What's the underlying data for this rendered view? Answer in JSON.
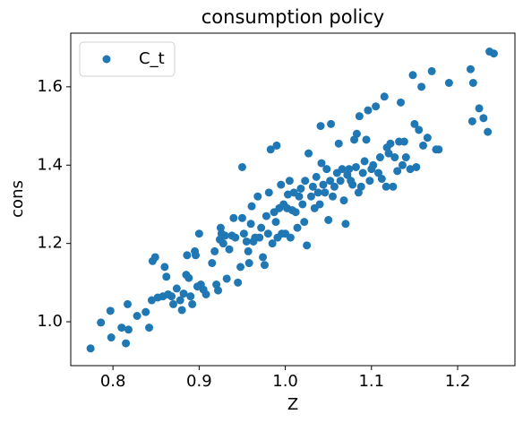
{
  "chart_data": {
    "type": "scatter",
    "title": "consumption policy",
    "x_label": "Z",
    "y_label": "cons",
    "series": [
      {
        "name": "C_t",
        "color": "#1f77b4",
        "x": [
          0.774,
          0.786,
          0.797,
          0.798,
          0.81,
          0.815,
          0.817,
          0.818,
          0.828,
          0.838,
          0.842,
          0.845,
          0.846,
          0.849,
          0.852,
          0.858,
          0.86,
          0.862,
          0.864,
          0.868,
          0.87,
          0.874,
          0.878,
          0.88,
          0.882,
          0.885,
          0.886,
          0.888,
          0.89,
          0.892,
          0.895,
          0.896,
          0.898,
          0.9,
          0.902,
          0.905,
          0.908,
          0.915,
          0.918,
          0.92,
          0.922,
          0.924,
          0.925,
          0.926,
          0.928,
          0.93,
          0.932,
          0.935,
          0.938,
          0.94,
          0.942,
          0.945,
          0.948,
          0.95,
          0.95,
          0.952,
          0.955,
          0.957,
          0.958,
          0.96,
          0.961,
          0.963,
          0.965,
          0.968,
          0.97,
          0.972,
          0.974,
          0.976,
          0.978,
          0.98,
          0.981,
          0.983,
          0.985,
          0.987,
          0.989,
          0.99,
          0.991,
          0.993,
          0.995,
          0.996,
          0.998,
          1.0,
          1.002,
          1.003,
          1.005,
          1.006,
          1.008,
          1.01,
          1.012,
          1.014,
          1.016,
          1.018,
          1.02,
          1.022,
          1.023,
          1.025,
          1.027,
          1.03,
          1.032,
          1.034,
          1.036,
          1.038,
          1.04,
          1.041,
          1.042,
          1.044,
          1.046,
          1.048,
          1.05,
          1.052,
          1.053,
          1.055,
          1.057,
          1.06,
          1.062,
          1.064,
          1.066,
          1.068,
          1.07,
          1.072,
          1.074,
          1.076,
          1.078,
          1.08,
          1.082,
          1.083,
          1.085,
          1.086,
          1.088,
          1.09,
          1.092,
          1.094,
          1.096,
          1.098,
          1.1,
          1.102,
          1.105,
          1.108,
          1.11,
          1.112,
          1.115,
          1.117,
          1.118,
          1.12,
          1.122,
          1.125,
          1.127,
          1.13,
          1.132,
          1.134,
          1.136,
          1.138,
          1.14,
          1.145,
          1.148,
          1.15,
          1.152,
          1.155,
          1.158,
          1.16,
          1.165,
          1.17,
          1.175,
          1.178,
          1.19,
          1.215,
          1.217,
          1.218,
          1.225,
          1.23,
          1.235,
          1.237,
          1.242
        ],
        "values": [
          0.932,
          0.998,
          1.028,
          0.96,
          0.985,
          0.945,
          1.045,
          0.98,
          1.015,
          1.025,
          0.985,
          1.055,
          1.155,
          1.165,
          1.062,
          1.065,
          1.14,
          1.115,
          1.07,
          1.065,
          1.045,
          1.085,
          1.055,
          1.03,
          1.072,
          1.12,
          1.17,
          1.112,
          1.065,
          1.045,
          1.18,
          1.17,
          1.09,
          1.225,
          1.095,
          1.082,
          1.07,
          1.15,
          1.18,
          1.095,
          1.08,
          1.21,
          1.24,
          1.225,
          1.2,
          1.22,
          1.11,
          1.185,
          1.22,
          1.265,
          1.215,
          1.1,
          1.14,
          1.395,
          1.265,
          1.225,
          1.205,
          1.18,
          1.15,
          1.25,
          1.295,
          1.205,
          1.215,
          1.32,
          1.215,
          1.24,
          1.165,
          1.145,
          1.27,
          1.225,
          1.33,
          1.44,
          1.2,
          1.28,
          1.255,
          1.45,
          1.215,
          1.29,
          1.35,
          1.225,
          1.3,
          1.225,
          1.29,
          1.325,
          1.36,
          1.215,
          1.285,
          1.33,
          1.28,
          1.24,
          1.32,
          1.34,
          1.3,
          1.255,
          1.36,
          1.195,
          1.43,
          1.32,
          1.345,
          1.29,
          1.37,
          1.33,
          1.3,
          1.5,
          1.405,
          1.35,
          1.33,
          1.39,
          1.26,
          1.36,
          1.505,
          1.32,
          1.345,
          1.38,
          1.455,
          1.36,
          1.39,
          1.31,
          1.25,
          1.375,
          1.39,
          1.36,
          1.35,
          1.465,
          1.395,
          1.48,
          1.33,
          1.525,
          1.345,
          1.38,
          1.41,
          1.465,
          1.54,
          1.36,
          1.39,
          1.4,
          1.55,
          1.38,
          1.42,
          1.365,
          1.575,
          1.345,
          1.445,
          1.43,
          1.455,
          1.345,
          1.42,
          1.385,
          1.46,
          1.56,
          1.4,
          1.46,
          1.42,
          1.39,
          1.63,
          1.505,
          1.395,
          1.49,
          1.6,
          1.45,
          1.47,
          1.64,
          1.44,
          1.44,
          1.61,
          1.645,
          1.512,
          1.61,
          1.545,
          1.52,
          1.485,
          1.69,
          1.685
        ]
      }
    ],
    "xlim": [
      0.751,
      1.2665
    ],
    "ylim": [
      0.888,
      1.737
    ],
    "xticks": [
      0.8,
      0.9,
      {
        "value": 1,
        "label": "1.0"
      },
      1.1,
      1.2
    ],
    "yticks": [
      {
        "value": 1,
        "label": "1.0"
      },
      1.2,
      1.4,
      1.6
    ],
    "legend": "upper left"
  }
}
